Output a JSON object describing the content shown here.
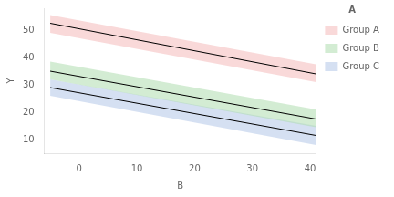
{
  "chart_data": {
    "type": "line",
    "xlabel": "B",
    "ylabel": "Y",
    "xlim": [
      -6,
      41
    ],
    "ylim": [
      5,
      58
    ],
    "xticks": [
      0,
      10,
      20,
      30,
      40
    ],
    "yticks": [
      10,
      20,
      30,
      40,
      50
    ],
    "grid": false,
    "legend": "right",
    "legend_title": "A",
    "x": [
      -5,
      41
    ],
    "series": [
      {
        "name": "Group A",
        "color": "#F4BABA",
        "values": [
          52.5,
          34.0
        ],
        "upper": [
          55.5,
          37.5
        ],
        "lower": [
          49.0,
          31.0
        ]
      },
      {
        "name": "Group B",
        "color": "#AEDCAE",
        "values": [
          35.0,
          17.5
        ],
        "upper": [
          38.5,
          21.0
        ],
        "lower": [
          32.0,
          14.5
        ]
      },
      {
        "name": "Group C",
        "color": "#B3C6E8",
        "values": [
          29.0,
          11.5
        ],
        "upper": [
          32.0,
          15.0
        ],
        "lower": [
          26.0,
          8.0
        ]
      }
    ]
  }
}
